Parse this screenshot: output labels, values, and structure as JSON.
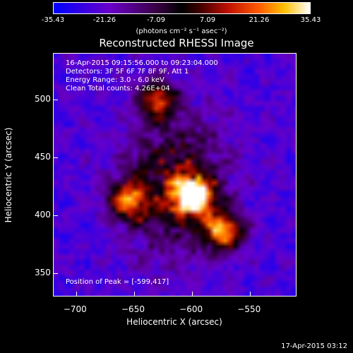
{
  "chart_data": {
    "type": "heatmap",
    "title": "Reconstructed RHESSI Image",
    "xlabel": "Heliocentric X (arcsec)",
    "ylabel": "Heliocentric Y (arcsec)",
    "xlim": [
      -720,
      -510
    ],
    "ylim": [
      330,
      540
    ],
    "x_ticks": [
      -700,
      -650,
      -600,
      -550
    ],
    "y_ticks": [
      350,
      400,
      450,
      500
    ],
    "colorbar": {
      "ticks": [
        "-35.43",
        "-21.26",
        "-7.09",
        "7.09",
        "21.26",
        "35.43"
      ],
      "range": [
        -35.43,
        35.43
      ],
      "units": "(photons cm⁻² s⁻¹ asec⁻²)"
    },
    "annotations": {
      "time": "16-Apr-2015 09:15:56.000 to 09:23:04.000",
      "detectors": "Detectors: 3F 5F 6F 7F 8F 9F, Att 1",
      "energy": "Energy Range: 3.0 - 6.0 keV",
      "clean": "Clean     Total counts: 4.26E+04",
      "peak": "Position of Peak = [-599,417]"
    },
    "sources": [
      {
        "x": -599,
        "y": 417,
        "intensity": 35.4
      },
      {
        "x": -573,
        "y": 386,
        "intensity": 24
      },
      {
        "x": -655,
        "y": 413,
        "intensity": 18
      },
      {
        "x": -630,
        "y": 500,
        "intensity": 14
      }
    ]
  },
  "footer": {
    "timestamp": "17-Apr-2015 03:12"
  }
}
